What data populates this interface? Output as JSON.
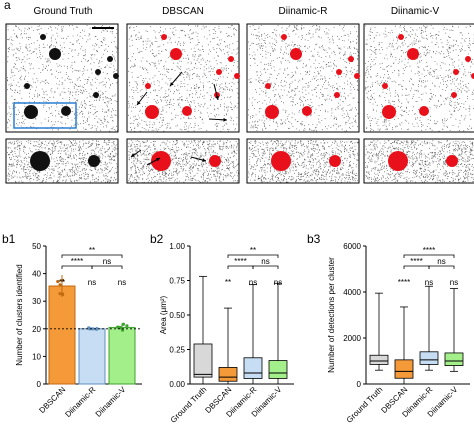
{
  "figure": {
    "panel_a_letter": "a",
    "panel_b1_letter": "b1",
    "panel_b2_letter": "b2",
    "panel_b3_letter": "b3",
    "column_titles": [
      "Ground Truth",
      "DBSCAN",
      "Diinamic-R",
      "Diinamic-V"
    ],
    "colors": {
      "cluster_red": "#e8101a",
      "box_blue": "#2a7fd0",
      "dbscan_orange": "#f59a38",
      "diinamic_r_blue": "#c6ddf3",
      "diinamic_v_green": "#a3f08a",
      "gt_gray": "#d8d8d8"
    }
  },
  "chart_data": [
    {
      "id": "b1",
      "type": "bar",
      "categories": [
        "DBSCAN",
        "Diinamic-R",
        "Diinamic-V"
      ],
      "values": [
        35.5,
        20,
        20.5
      ],
      "errors": [
        4,
        0.5,
        1.5
      ],
      "reference_line": 20,
      "ylabel": "Number of clusters identified",
      "ylim": [
        0,
        50
      ],
      "yticks": [
        "0",
        "10",
        "20",
        "30",
        "40",
        "50"
      ],
      "significance": [
        {
          "label": "**",
          "from": 0,
          "to": 2
        },
        {
          "label": "****",
          "from": 0,
          "to": 1
        },
        {
          "label": "ns",
          "from": 1,
          "to": 2
        },
        {
          "label": "**",
          "at": 0
        },
        {
          "label": "ns",
          "at": 1
        },
        {
          "label": "ns",
          "at": 2
        }
      ]
    },
    {
      "id": "b2",
      "type": "box",
      "categories": [
        "Ground Truth",
        "DBSCAN",
        "Diinamic-R",
        "Diinamic-V"
      ],
      "ylabel": "Area (μm²)",
      "ylim": [
        0,
        1.0
      ],
      "yticks": [
        "0.00",
        "0.25",
        "0.50",
        "0.75",
        "1.00"
      ],
      "boxes": [
        {
          "min": 0.0,
          "q1": 0.05,
          "median": 0.07,
          "q3": 0.29,
          "max": 0.78
        },
        {
          "min": 0.0,
          "q1": 0.02,
          "median": 0.05,
          "q3": 0.12,
          "max": 0.55
        },
        {
          "min": 0.0,
          "q1": 0.04,
          "median": 0.08,
          "q3": 0.19,
          "max": 0.72
        },
        {
          "min": 0.0,
          "q1": 0.04,
          "median": 0.08,
          "q3": 0.17,
          "max": 0.73
        }
      ],
      "significance": [
        {
          "label": "**",
          "from": 1,
          "to": 3
        },
        {
          "label": "****",
          "from": 1,
          "to": 2
        },
        {
          "label": "ns",
          "from": 2,
          "to": 3
        },
        {
          "label": "**",
          "at": 1
        },
        {
          "label": "ns",
          "at": 2
        },
        {
          "label": "ns",
          "at": 3
        }
      ]
    },
    {
      "id": "b3",
      "type": "box",
      "categories": [
        "Ground Truth",
        "DBSCAN",
        "Diinamic-R",
        "Diinamic-V"
      ],
      "ylabel": "Number of detections per cluster",
      "ylim": [
        0,
        6000
      ],
      "yticks": [
        "0",
        "2000",
        "4000",
        "6000"
      ],
      "boxes": [
        {
          "min": 600,
          "q1": 850,
          "median": 1000,
          "q3": 1250,
          "max": 3950
        },
        {
          "min": 0,
          "q1": 250,
          "median": 550,
          "q3": 1050,
          "max": 3350
        },
        {
          "min": 600,
          "q1": 850,
          "median": 1050,
          "q3": 1400,
          "max": 4250
        },
        {
          "min": 550,
          "q1": 800,
          "median": 1000,
          "q3": 1350,
          "max": 4150
        }
      ],
      "significance": [
        {
          "label": "****",
          "from": 1,
          "to": 3
        },
        {
          "label": "****",
          "from": 1,
          "to": 2
        },
        {
          "label": "ns",
          "from": 2,
          "to": 3
        },
        {
          "label": "****",
          "at": 1
        },
        {
          "label": "ns",
          "at": 2
        },
        {
          "label": "ns",
          "at": 3
        }
      ]
    }
  ]
}
